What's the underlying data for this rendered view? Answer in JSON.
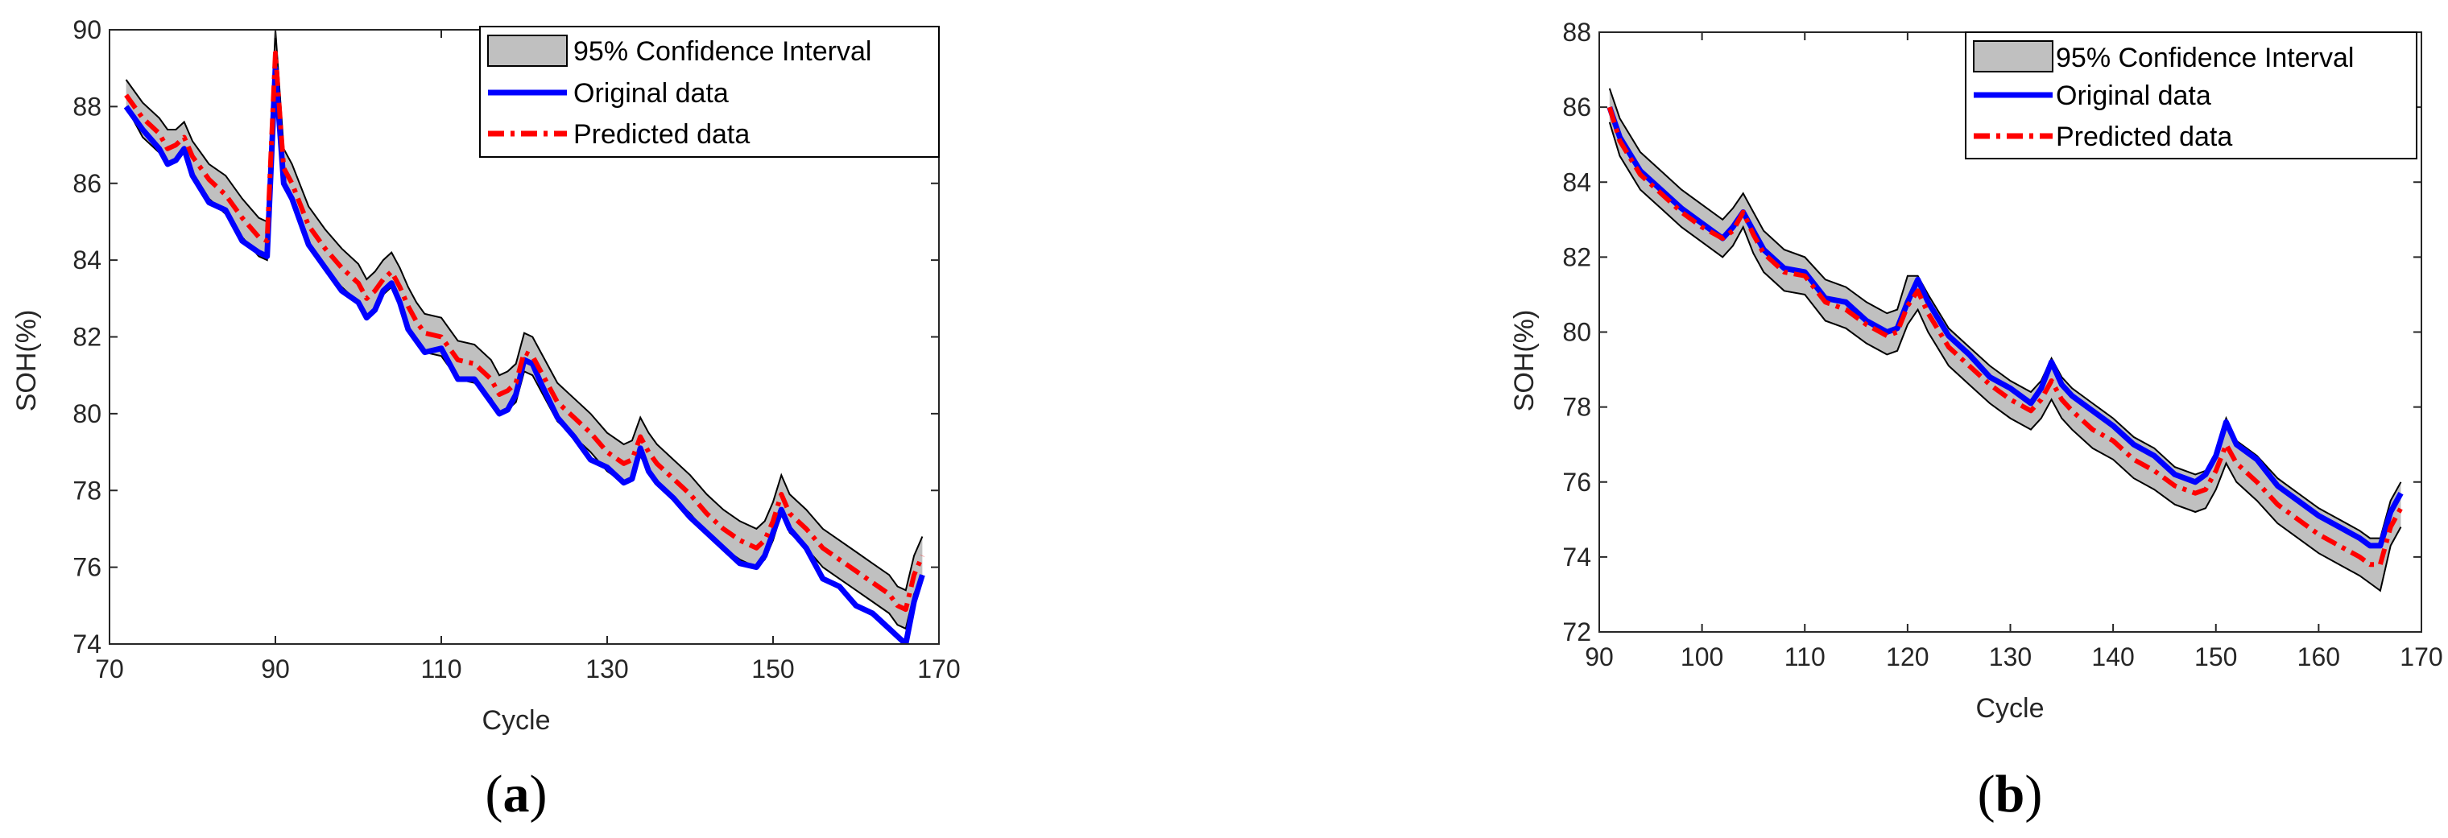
{
  "colors": {
    "original": "#0000ff",
    "predicted": "#ff0000",
    "ci_fill": "#c0c0c0",
    "ci_edge": "#000000"
  },
  "legend_placement": "top-right",
  "chart_data": [
    {
      "type": "line",
      "panel_label": "a",
      "xlabel": "Cycle",
      "ylabel": "SOH(%)",
      "xlim": [
        70,
        170
      ],
      "ylim": [
        74,
        90
      ],
      "xticks": [
        70,
        90,
        110,
        130,
        150,
        170
      ],
      "yticks": [
        74,
        76,
        78,
        80,
        82,
        84,
        86,
        88,
        90
      ],
      "grid": false,
      "legend": [
        "95% Confidence Interval",
        "Original data",
        "Predicted data"
      ],
      "x": [
        72,
        74,
        76,
        77,
        78,
        79,
        80,
        82,
        84,
        86,
        88,
        89,
        90,
        91,
        92,
        94,
        96,
        98,
        100,
        101,
        102,
        103,
        104,
        105,
        106,
        107,
        108,
        110,
        112,
        114,
        116,
        117,
        118,
        119,
        120,
        121,
        122,
        124,
        126,
        128,
        130,
        132,
        133,
        134,
        135,
        136,
        138,
        140,
        142,
        144,
        146,
        148,
        149,
        150,
        151,
        152,
        154,
        156,
        158,
        160,
        162,
        164,
        165,
        166,
        167,
        168
      ],
      "series": [
        {
          "name": "Original data",
          "values": [
            88.0,
            87.4,
            86.9,
            86.5,
            86.6,
            86.9,
            86.2,
            85.5,
            85.3,
            84.5,
            84.2,
            84.1,
            89.0,
            86.0,
            85.6,
            84.4,
            83.8,
            83.2,
            82.9,
            82.5,
            82.7,
            83.2,
            83.4,
            82.9,
            82.2,
            81.9,
            81.6,
            81.7,
            80.9,
            80.9,
            80.3,
            80.0,
            80.1,
            80.5,
            81.4,
            81.3,
            80.8,
            79.9,
            79.4,
            78.8,
            78.6,
            78.2,
            78.3,
            79.1,
            78.5,
            78.2,
            77.8,
            77.3,
            76.9,
            76.5,
            76.1,
            76.0,
            76.3,
            76.9,
            77.5,
            77.0,
            76.5,
            75.7,
            75.5,
            75.0,
            74.8,
            74.4,
            74.2,
            74.0,
            75.1,
            75.8
          ]
        },
        {
          "name": "Predicted data",
          "values": [
            88.3,
            87.7,
            87.3,
            86.9,
            87.0,
            87.2,
            86.7,
            86.1,
            85.7,
            85.1,
            84.6,
            84.5,
            89.4,
            86.4,
            86.0,
            84.9,
            84.3,
            83.8,
            83.4,
            83.0,
            83.2,
            83.5,
            83.7,
            83.3,
            82.8,
            82.4,
            82.1,
            82.0,
            81.4,
            81.3,
            80.9,
            80.5,
            80.6,
            80.8,
            81.6,
            81.5,
            81.1,
            80.3,
            79.9,
            79.5,
            79.0,
            78.7,
            78.8,
            79.4,
            79.0,
            78.7,
            78.3,
            77.9,
            77.4,
            77.0,
            76.7,
            76.5,
            76.7,
            77.2,
            77.9,
            77.4,
            77.0,
            76.5,
            76.2,
            75.9,
            75.6,
            75.3,
            75.0,
            74.9,
            75.8,
            76.3
          ]
        },
        {
          "name": "95% Confidence Interval",
          "lower": [
            88.0,
            87.2,
            86.8,
            86.5,
            86.6,
            86.8,
            86.3,
            85.6,
            85.2,
            84.6,
            84.1,
            84.0,
            88.8,
            86.0,
            85.5,
            84.4,
            83.8,
            83.3,
            82.9,
            82.5,
            82.7,
            83.1,
            83.3,
            82.8,
            82.3,
            81.9,
            81.6,
            81.5,
            80.9,
            80.8,
            80.4,
            80.0,
            80.1,
            80.3,
            81.1,
            81.0,
            80.6,
            79.8,
            79.4,
            79.0,
            78.5,
            78.2,
            78.3,
            78.9,
            78.5,
            78.2,
            77.8,
            77.4,
            76.9,
            76.5,
            76.2,
            76.0,
            76.2,
            76.7,
            77.4,
            76.9,
            76.5,
            76.0,
            75.7,
            75.4,
            75.1,
            74.8,
            74.5,
            74.4,
            75.3,
            75.8
          ],
          "upper": [
            88.7,
            88.1,
            87.7,
            87.4,
            87.4,
            87.6,
            87.1,
            86.5,
            86.2,
            85.6,
            85.1,
            85.0,
            90.0,
            86.9,
            86.5,
            85.4,
            84.8,
            84.3,
            83.9,
            83.5,
            83.7,
            84.0,
            84.2,
            83.8,
            83.3,
            82.9,
            82.6,
            82.5,
            81.9,
            81.8,
            81.4,
            81.0,
            81.1,
            81.3,
            82.1,
            82.0,
            81.6,
            80.8,
            80.4,
            80.0,
            79.5,
            79.2,
            79.3,
            79.9,
            79.5,
            79.2,
            78.8,
            78.4,
            77.9,
            77.5,
            77.2,
            77.0,
            77.2,
            77.7,
            78.4,
            77.9,
            77.5,
            77.0,
            76.7,
            76.4,
            76.1,
            75.8,
            75.5,
            75.4,
            76.3,
            76.8
          ]
        }
      ]
    },
    {
      "type": "line",
      "panel_label": "b",
      "xlabel": "Cycle",
      "ylabel": "SOH(%)",
      "xlim": [
        90,
        170
      ],
      "ylim": [
        72,
        88
      ],
      "xticks": [
        90,
        100,
        110,
        120,
        130,
        140,
        150,
        160,
        170
      ],
      "yticks": [
        72,
        74,
        76,
        78,
        80,
        82,
        84,
        86,
        88
      ],
      "grid": false,
      "legend": [
        "95% Confidence Interval",
        "Original data",
        "Predicted data"
      ],
      "x": [
        91,
        92,
        94,
        96,
        98,
        100,
        102,
        103,
        104,
        105,
        106,
        108,
        110,
        112,
        114,
        116,
        118,
        119,
        120,
        121,
        122,
        124,
        126,
        128,
        130,
        132,
        133,
        134,
        135,
        136,
        138,
        140,
        142,
        144,
        146,
        148,
        149,
        150,
        151,
        152,
        154,
        156,
        158,
        160,
        162,
        164,
        165,
        166,
        167,
        168
      ],
      "series": [
        {
          "name": "Original data",
          "values": [
            86.0,
            85.2,
            84.3,
            83.8,
            83.3,
            82.9,
            82.5,
            82.8,
            83.2,
            82.7,
            82.2,
            81.7,
            81.6,
            80.9,
            80.8,
            80.3,
            80.0,
            80.1,
            80.8,
            81.4,
            80.8,
            79.9,
            79.4,
            78.8,
            78.5,
            78.1,
            78.5,
            79.2,
            78.6,
            78.3,
            77.9,
            77.5,
            77.0,
            76.7,
            76.2,
            76.0,
            76.2,
            76.7,
            77.6,
            77.0,
            76.6,
            75.9,
            75.5,
            75.1,
            74.8,
            74.5,
            74.3,
            74.3,
            75.2,
            75.7
          ]
        },
        {
          "name": "Predicted data",
          "values": [
            86.0,
            85.1,
            84.2,
            83.7,
            83.2,
            82.8,
            82.5,
            82.7,
            83.2,
            82.6,
            82.1,
            81.6,
            81.5,
            80.8,
            80.6,
            80.2,
            79.9,
            80.0,
            80.7,
            81.1,
            80.5,
            79.6,
            79.1,
            78.6,
            78.2,
            77.9,
            78.2,
            78.7,
            78.2,
            77.9,
            77.4,
            77.1,
            76.6,
            76.3,
            75.9,
            75.7,
            75.8,
            76.3,
            77.0,
            76.5,
            76.0,
            75.4,
            75.0,
            74.6,
            74.3,
            74.0,
            73.8,
            73.8,
            74.8,
            75.3
          ]
        },
        {
          "name": "95% Confidence Interval",
          "lower": [
            85.6,
            84.7,
            83.8,
            83.3,
            82.8,
            82.4,
            82.0,
            82.3,
            82.8,
            82.1,
            81.6,
            81.1,
            81.0,
            80.3,
            80.1,
            79.7,
            79.4,
            79.5,
            80.2,
            80.6,
            80.0,
            79.1,
            78.6,
            78.1,
            77.7,
            77.4,
            77.7,
            78.2,
            77.7,
            77.4,
            76.9,
            76.6,
            76.1,
            75.8,
            75.4,
            75.2,
            75.3,
            75.8,
            76.5,
            76.0,
            75.5,
            74.9,
            74.5,
            74.1,
            73.8,
            73.5,
            73.3,
            73.1,
            74.3,
            74.8
          ],
          "upper": [
            86.5,
            85.7,
            84.8,
            84.3,
            83.8,
            83.4,
            83.0,
            83.3,
            83.7,
            83.2,
            82.7,
            82.2,
            82.0,
            81.4,
            81.2,
            80.8,
            80.5,
            80.6,
            81.5,
            81.5,
            81.0,
            80.1,
            79.6,
            79.1,
            78.7,
            78.4,
            78.7,
            79.3,
            78.8,
            78.5,
            78.1,
            77.7,
            77.2,
            76.9,
            76.4,
            76.2,
            76.3,
            76.8,
            77.7,
            77.1,
            76.7,
            76.1,
            75.7,
            75.3,
            75.0,
            74.7,
            74.5,
            74.5,
            75.5,
            76.0
          ]
        }
      ]
    }
  ]
}
